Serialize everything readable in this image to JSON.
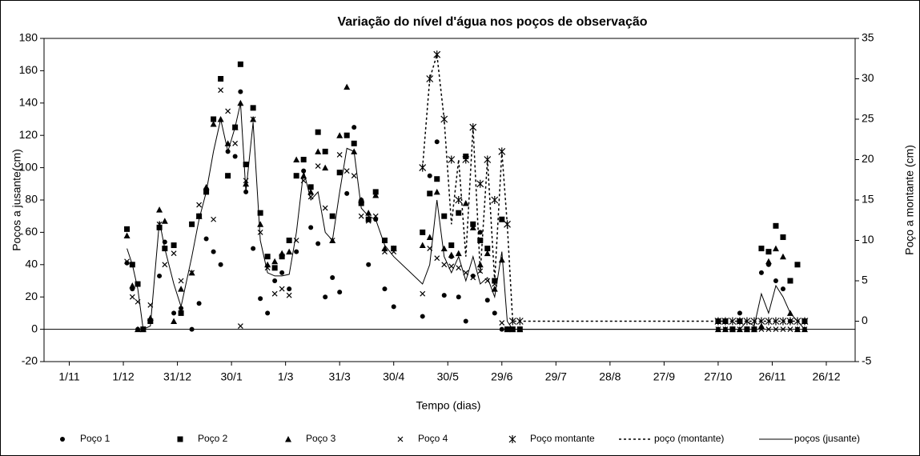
{
  "chart_data": {
    "type": "scatter",
    "title": "Variação do nível d'água nos poços de observação",
    "x_label": "Tempo (dias)",
    "y_label": "Poços  a jusante(cm)",
    "y2_label": "Poço a montante (cm)",
    "xlim": [
      -14,
      436
    ],
    "xticks": [
      {
        "value": 0,
        "label": "1/11"
      },
      {
        "value": 30,
        "label": "1/12"
      },
      {
        "value": 60,
        "label": "31/12"
      },
      {
        "value": 90,
        "label": "30/1"
      },
      {
        "value": 120,
        "label": "1/3"
      },
      {
        "value": 150,
        "label": "31/3"
      },
      {
        "value": 180,
        "label": "30/4"
      },
      {
        "value": 210,
        "label": "30/5"
      },
      {
        "value": 240,
        "label": "29/6"
      },
      {
        "value": 270,
        "label": "29/7"
      },
      {
        "value": 300,
        "label": "28/8"
      },
      {
        "value": 330,
        "label": "27/9"
      },
      {
        "value": 360,
        "label": "27/10"
      },
      {
        "value": 390,
        "label": "26/11"
      },
      {
        "value": 420,
        "label": "26/12"
      }
    ],
    "ylim": [
      -20,
      180
    ],
    "yticks": [
      -20,
      0,
      20,
      40,
      60,
      80,
      100,
      120,
      140,
      160,
      180
    ],
    "y2lim": [
      -5,
      35
    ],
    "y2ticks": [
      -5,
      0,
      5,
      10,
      15,
      20,
      25,
      30,
      35
    ],
    "x": [
      32,
      35,
      38,
      41,
      45,
      50,
      53,
      58,
      62,
      68,
      72,
      76,
      80,
      84,
      88,
      92,
      95,
      98,
      102,
      106,
      110,
      114,
      118,
      122,
      126,
      130,
      134,
      138,
      142,
      146,
      150,
      154,
      158,
      162,
      166,
      170,
      175,
      180,
      196,
      200,
      204,
      208,
      212,
      216,
      220,
      224,
      228,
      232,
      236,
      240,
      243,
      246,
      250,
      300,
      360,
      364,
      368,
      372,
      376,
      380,
      384,
      388,
      392,
      396,
      400,
      404,
      408
    ],
    "series": [
      {
        "name": "Poço 1",
        "marker": "circle",
        "color": "#000000",
        "values": [
          41,
          25,
          0,
          0,
          5,
          33,
          54,
          10,
          13,
          0,
          16,
          56,
          48,
          40,
          110,
          107,
          147,
          85,
          50,
          19,
          10,
          30,
          35,
          25,
          48,
          98,
          63,
          53,
          20,
          32,
          23,
          84,
          125,
          80,
          40,
          68,
          25,
          14,
          8,
          95,
          116,
          21,
          45,
          20,
          5,
          33,
          60,
          18,
          10,
          0,
          0,
          0,
          0,
          null,
          0,
          0,
          0,
          10,
          0,
          0,
          35,
          40,
          30,
          25,
          5,
          0,
          0
        ]
      },
      {
        "name": "Poço 2",
        "marker": "square",
        "color": "#000000",
        "values": [
          62,
          40,
          28,
          0,
          5,
          63,
          50,
          52,
          10,
          65,
          70,
          85,
          130,
          155,
          95,
          125,
          164,
          102,
          137,
          72,
          45,
          38,
          45,
          55,
          95,
          105,
          88,
          122,
          110,
          70,
          97,
          120,
          115,
          78,
          68,
          85,
          55,
          50,
          60,
          84,
          93,
          70,
          52,
          72,
          107,
          65,
          55,
          50,
          30,
          68,
          0,
          0,
          0,
          null,
          5,
          5,
          0,
          5,
          0,
          0,
          50,
          48,
          64,
          57,
          30,
          40,
          5
        ]
      },
      {
        "name": "Poço 3",
        "marker": "triangle",
        "color": "#000000",
        "values": [
          58,
          27,
          0,
          0,
          7,
          74,
          67,
          5,
          25,
          35,
          70,
          88,
          127,
          130,
          115,
          125,
          140,
          90,
          130,
          65,
          40,
          42,
          47,
          48,
          105,
          95,
          85,
          110,
          100,
          55,
          120,
          150,
          110,
          80,
          72,
          83,
          50,
          50,
          52,
          57,
          85,
          50,
          46,
          47,
          78,
          63,
          40,
          47,
          25,
          43,
          0,
          0,
          0,
          null,
          0,
          0,
          0,
          0,
          0,
          0,
          2,
          42,
          50,
          45,
          10,
          0,
          0
        ]
      },
      {
        "name": "Poço 4",
        "marker": "x",
        "color": "#000000",
        "values": [
          42,
          20,
          17,
          0,
          15,
          65,
          40,
          47,
          30,
          35,
          77,
          86,
          68,
          148,
          135,
          115,
          2,
          92,
          130,
          60,
          38,
          22,
          25,
          21,
          55,
          92,
          82,
          101,
          75,
          55,
          108,
          98,
          95,
          70,
          67,
          70,
          48,
          48,
          22,
          50,
          44,
          40,
          39,
          38,
          35,
          32,
          36,
          30,
          28,
          4,
          0,
          0,
          0,
          null,
          0,
          0,
          0,
          0,
          0,
          0,
          0,
          0,
          0,
          0,
          0,
          0,
          0
        ]
      },
      {
        "name": "Poço montante",
        "marker": "asterisk",
        "axis": "y2",
        "color": "#000000",
        "values": [
          null,
          null,
          null,
          null,
          null,
          null,
          null,
          null,
          null,
          null,
          null,
          null,
          null,
          null,
          null,
          null,
          null,
          null,
          null,
          null,
          null,
          null,
          null,
          null,
          null,
          null,
          null,
          null,
          null,
          null,
          null,
          null,
          null,
          null,
          null,
          null,
          null,
          null,
          19,
          30,
          33,
          25,
          20,
          15,
          20,
          24,
          17,
          20,
          15,
          21,
          12,
          0,
          0,
          null,
          0,
          0,
          0,
          0,
          0,
          0,
          0,
          0,
          0,
          0,
          0,
          0,
          0
        ]
      },
      {
        "name": "poço (montante)",
        "line": "dotted",
        "axis": "y2",
        "color": "#000000",
        "values": [
          null,
          null,
          null,
          null,
          null,
          null,
          null,
          null,
          null,
          null,
          null,
          null,
          null,
          null,
          null,
          null,
          null,
          null,
          null,
          null,
          null,
          null,
          null,
          null,
          null,
          null,
          null,
          null,
          null,
          null,
          null,
          null,
          null,
          null,
          null,
          null,
          null,
          null,
          19,
          30,
          33,
          25,
          12,
          20,
          8,
          24,
          6,
          20,
          5,
          21,
          12,
          0,
          0,
          0,
          0,
          0,
          0,
          0,
          0,
          0,
          0,
          0,
          0,
          0,
          0,
          0,
          0
        ]
      },
      {
        "name": "poços (jusante)",
        "line": "solid",
        "color": "#000000",
        "values": [
          50,
          40,
          25,
          0,
          2,
          67,
          50,
          28,
          14,
          45,
          68,
          85,
          110,
          130,
          110,
          125,
          140,
          85,
          128,
          55,
          35,
          33,
          33,
          34,
          60,
          98,
          80,
          85,
          60,
          55,
          85,
          112,
          110,
          75,
          70,
          68,
          52,
          45,
          28,
          40,
          80,
          45,
          35,
          45,
          30,
          45,
          28,
          32,
          20,
          48,
          5,
          0,
          0,
          0,
          0,
          0,
          0,
          0,
          5,
          2,
          22,
          10,
          27,
          20,
          10,
          5,
          0
        ]
      }
    ]
  }
}
